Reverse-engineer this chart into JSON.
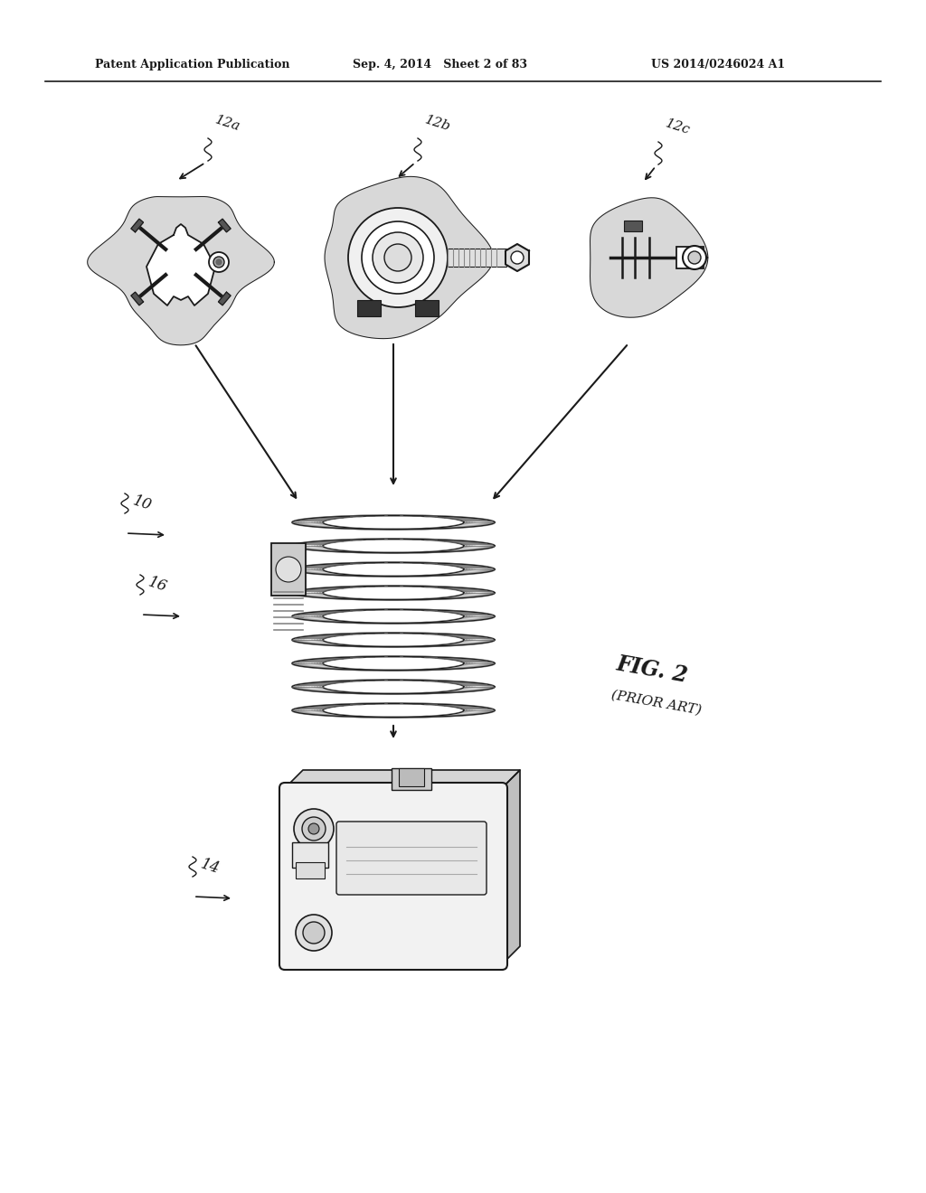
{
  "header_left": "Patent Application Publication",
  "header_mid": "Sep. 4, 2014   Sheet 2 of 83",
  "header_right": "US 2014/0246024 A1",
  "label_12a": "12a",
  "label_12b": "12b",
  "label_12c": "12c",
  "label_10": "10",
  "label_16": "16",
  "label_14": "14",
  "fig_caption": "FIG. 2",
  "fig_subcaption": "(PRIOR ART)",
  "bg_color": "#ffffff",
  "line_color": "#1a1a1a",
  "text_color": "#1a1a1a",
  "gray_light": "#cccccc",
  "gray_mid": "#999999",
  "gray_dark": "#555555"
}
